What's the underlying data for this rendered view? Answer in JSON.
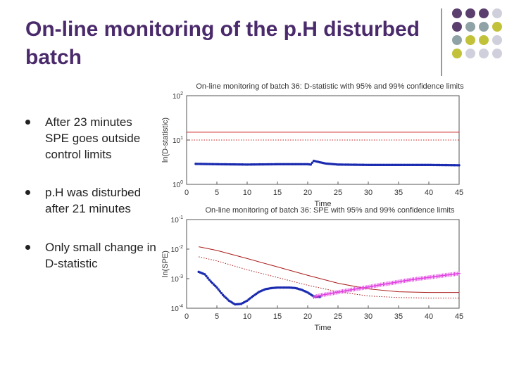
{
  "slide": {
    "title": "On-line monitoring of the p.H disturbed batch",
    "bullets": [
      "After 23 minutes SPE goes outside control limits",
      "p.H was disturbed after 21 minutes",
      "Only small change in D-statistic"
    ],
    "palette": [
      "#5b3f6e",
      "#8fa3a6",
      "#c2c23a",
      "#cfd0dc"
    ]
  },
  "chart_data": [
    {
      "type": "line",
      "title": "On-line monitoring of batch 36: D-statistic with 95% and 99% confidence limits",
      "xlabel": "Time",
      "ylabel": "ln(D-statistic)",
      "xlim": [
        0,
        45
      ],
      "yscale": "log",
      "ylim": [
        1,
        100
      ],
      "xticks": [
        "0",
        "5",
        "10",
        "15",
        "20",
        "25",
        "30",
        "35",
        "40",
        "45"
      ],
      "yticks": [
        "10^2",
        "10^1",
        "10^0"
      ],
      "series": [
        {
          "color": "#cc2222",
          "style": "solid",
          "points": [
            [
              0,
              15
            ],
            [
              45,
              15
            ]
          ]
        },
        {
          "color": "#cc2222",
          "style": "dotted",
          "points": [
            [
              0,
              10
            ],
            [
              45,
              10
            ]
          ]
        },
        {
          "color": "#1a2bb0",
          "style": "markers",
          "points": [
            [
              1.5,
              2.9
            ],
            [
              5,
              2.85
            ],
            [
              10,
              2.8
            ],
            [
              15,
              2.85
            ],
            [
              20,
              2.85
            ],
            [
              20.5,
              2.8
            ],
            [
              21,
              3.4
            ],
            [
              22,
              3.15
            ],
            [
              23,
              2.95
            ],
            [
              25,
              2.8
            ],
            [
              30,
              2.75
            ],
            [
              35,
              2.75
            ],
            [
              40,
              2.75
            ],
            [
              45,
              2.7
            ]
          ]
        }
      ]
    },
    {
      "type": "line",
      "title": "On-line monitoring of batch 36: SPE with 95% and 99% confidence limits",
      "xlabel": "Time",
      "ylabel": "ln(SPE)",
      "xlim": [
        0,
        45
      ],
      "yscale": "log",
      "ylim": [
        0.0001,
        0.1
      ],
      "xticks": [
        "0",
        "5",
        "10",
        "15",
        "20",
        "25",
        "30",
        "35",
        "40",
        "45"
      ],
      "yticks": [
        "10^-1",
        "10^-2",
        "10^-3",
        "10^-4"
      ],
      "series": [
        {
          "color": "#aa1a1a",
          "style": "solid",
          "points": [
            [
              2,
              0.012
            ],
            [
              5,
              0.009
            ],
            [
              10,
              0.0048
            ],
            [
              15,
              0.0025
            ],
            [
              20,
              0.0013
            ],
            [
              25,
              0.0007
            ],
            [
              30,
              0.00045
            ],
            [
              35,
              0.00036
            ],
            [
              40,
              0.00034
            ],
            [
              45,
              0.00034
            ]
          ]
        },
        {
          "color": "#aa1a1a",
          "style": "dotted",
          "points": [
            [
              2,
              0.0055
            ],
            [
              5,
              0.004
            ],
            [
              10,
              0.002
            ],
            [
              15,
              0.0011
            ],
            [
              20,
              0.0006
            ],
            [
              25,
              0.00036
            ],
            [
              30,
              0.00026
            ],
            [
              35,
              0.00023
            ],
            [
              40,
              0.00022
            ],
            [
              45,
              0.00022
            ]
          ]
        },
        {
          "color": "#1a2bb0",
          "style": "markers",
          "points": [
            [
              2,
              0.0017
            ],
            [
              3,
              0.0014
            ],
            [
              4,
              0.0008
            ],
            [
              5,
              0.0005
            ],
            [
              6,
              0.00028
            ],
            [
              7,
              0.00018
            ],
            [
              8,
              0.000135
            ],
            [
              9,
              0.00014
            ],
            [
              10,
              0.00018
            ],
            [
              11,
              0.00026
            ],
            [
              12,
              0.00036
            ],
            [
              13,
              0.00044
            ],
            [
              14,
              0.00048
            ],
            [
              15,
              0.0005
            ],
            [
              16,
              0.0005
            ],
            [
              17,
              0.0005
            ],
            [
              18,
              0.00048
            ],
            [
              19,
              0.00042
            ],
            [
              20,
              0.00034
            ],
            [
              21,
              0.00025
            ],
            [
              22,
              0.00024
            ]
          ]
        },
        {
          "color": "#e040e0",
          "style": "markers",
          "points": [
            [
              21,
              0.00024
            ],
            [
              22,
              0.00027
            ],
            [
              24,
              0.00032
            ],
            [
              26,
              0.00038
            ],
            [
              28,
              0.00045
            ],
            [
              30,
              0.00052
            ],
            [
              32,
              0.00062
            ],
            [
              34,
              0.00072
            ],
            [
              36,
              0.00085
            ],
            [
              38,
              0.00098
            ],
            [
              40,
              0.0011
            ],
            [
              42,
              0.00125
            ],
            [
              45,
              0.0015
            ]
          ]
        }
      ]
    }
  ]
}
